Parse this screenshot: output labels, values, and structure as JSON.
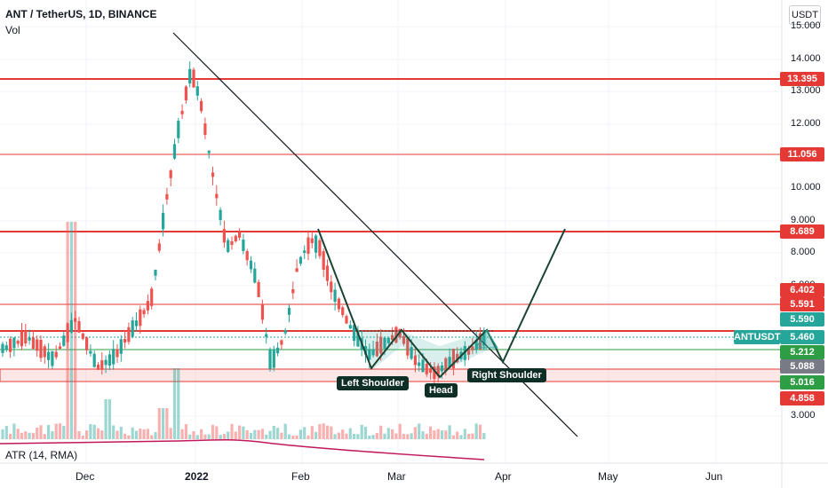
{
  "header": {
    "symbol": "ANT / TetherUS, 1D, BINANCE",
    "volume_label": "Vol",
    "atr_label": "ATR (14, RMA)"
  },
  "axis": {
    "currency": "USDT",
    "y_ticks": [
      "15.000",
      "14.000",
      "13.000",
      "12.000",
      "10.000",
      "9.000",
      "8.000",
      "6.000",
      "3.000"
    ],
    "x_ticks": [
      "Dec",
      "2022",
      "Feb",
      "Mar",
      "Apr",
      "May",
      "Jun"
    ]
  },
  "price_tags": [
    {
      "value": "13.395",
      "color": "#e53935"
    },
    {
      "value": "11.056",
      "color": "#e53935"
    },
    {
      "value": "8.689",
      "color": "#e53935"
    },
    {
      "value": "6.402",
      "color": "#e53935"
    },
    {
      "value": "5.591",
      "color": "#e53935"
    },
    {
      "value": "5.590",
      "color": "#26a69a"
    },
    {
      "value": "5.460",
      "color": "#26a69a"
    },
    {
      "value": "5.212",
      "color": "#2e9e44"
    },
    {
      "value": "5.088",
      "color": "#787b86"
    },
    {
      "value": "5.016",
      "color": "#2e9e44"
    },
    {
      "value": "4.858",
      "color": "#e53935"
    }
  ],
  "symbol_tag": "ANTUSDT",
  "pattern_labels": {
    "left_shoulder": "Left Shoulder",
    "head": "Head",
    "right_shoulder": "Right Shoulder"
  },
  "colors": {
    "up": "#26a69a",
    "down": "#ef5350",
    "level_line": "#e53935",
    "support_line": "#2e9e44",
    "trendline": "#131722",
    "pattern_line": "#1b4332",
    "atr_line": "#c2185b"
  }
}
